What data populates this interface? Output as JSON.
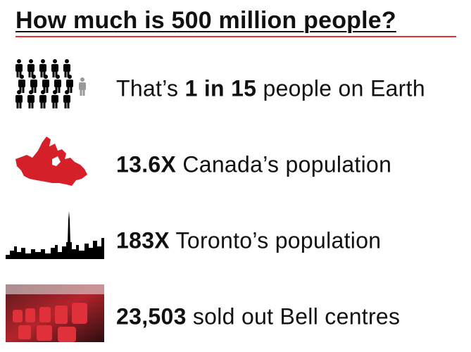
{
  "header": {
    "title": "How much is 500 million people?"
  },
  "rows": [
    {
      "parts": [
        {
          "text": "That’s ",
          "bold": false
        },
        {
          "text": "1 in 15",
          "bold": true
        },
        {
          "text": " people on Earth",
          "bold": false
        }
      ]
    },
    {
      "parts": [
        {
          "text": "13.6X",
          "bold": true
        },
        {
          "text": " Canada’s population",
          "bold": false
        }
      ]
    },
    {
      "parts": [
        {
          "text": "183X",
          "bold": true
        },
        {
          "text": " Toronto’s population",
          "bold": false
        }
      ]
    },
    {
      "parts": [
        {
          "text": "23,503",
          "bold": true
        },
        {
          "text": " sold out Bell centres",
          "bold": false
        }
      ]
    }
  ]
}
